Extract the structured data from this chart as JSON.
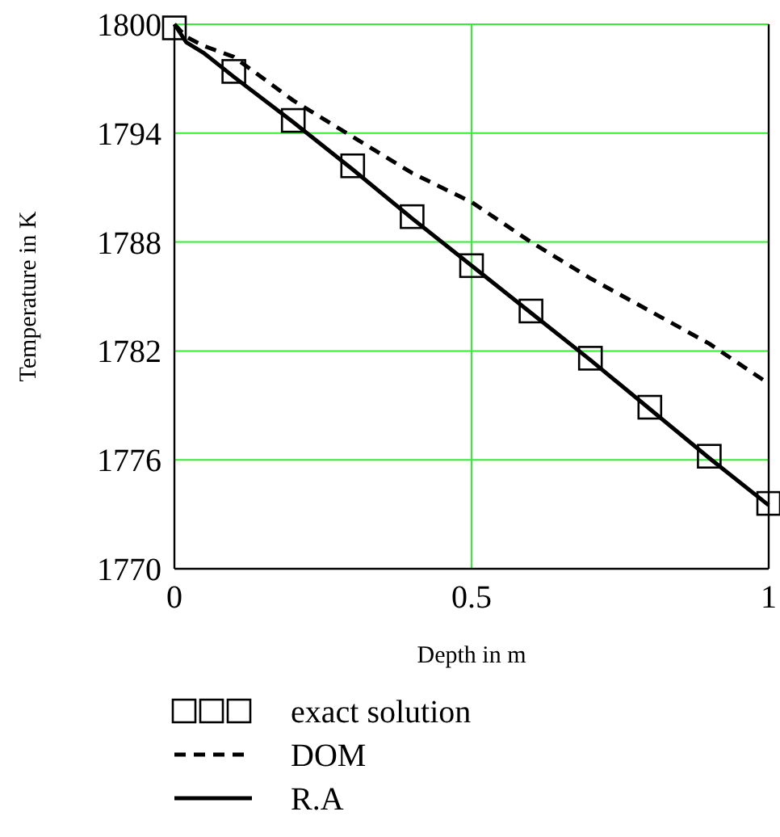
{
  "chart_data": {
    "type": "line",
    "xlabel": "Depth in m",
    "ylabel": "Temperature in K",
    "xlim": [
      0,
      1
    ],
    "xticks": [
      0,
      0.5,
      1
    ],
    "ylim": [
      1770,
      1800
    ],
    "yticks": [
      1770,
      1776,
      1782,
      1788,
      1794,
      1800
    ],
    "grid": true,
    "legend": "bottom",
    "series": [
      {
        "name": "exact solution",
        "type": "scatter",
        "marker": "square",
        "color": "#000000",
        "x": [
          0,
          0.1,
          0.2,
          0.3,
          0.4,
          0.5,
          0.6,
          0.7,
          0.8,
          0.9,
          1
        ],
        "values": [
          1799.8,
          1797.4,
          1794.7,
          1792.2,
          1789.4,
          1786.7,
          1784.2,
          1781.6,
          1778.9,
          1776.2,
          1773.6
        ]
      },
      {
        "name": "DOM",
        "line_style": "dashed",
        "color": "#000000",
        "x": [
          0,
          0.02,
          0.05,
          0.1,
          0.2,
          0.3,
          0.4,
          0.5,
          0.6,
          0.7,
          0.8,
          0.9,
          1
        ],
        "values": [
          1800,
          1799.3,
          1798.8,
          1798.2,
          1795.8,
          1793.8,
          1791.8,
          1790.2,
          1788,
          1786,
          1784.2,
          1782.4,
          1780.2
        ]
      },
      {
        "name": "R.A",
        "line_style": "solid",
        "color": "#000000",
        "x": [
          0,
          0.02,
          0.05,
          0.1,
          0.2,
          0.3,
          0.4,
          0.5,
          0.6,
          0.7,
          0.8,
          0.9,
          1
        ],
        "values": [
          1800,
          1799,
          1798.4,
          1797.1,
          1794.6,
          1792,
          1789.3,
          1786.7,
          1784.1,
          1781.5,
          1778.8,
          1776.1,
          1773.5
        ]
      }
    ]
  }
}
